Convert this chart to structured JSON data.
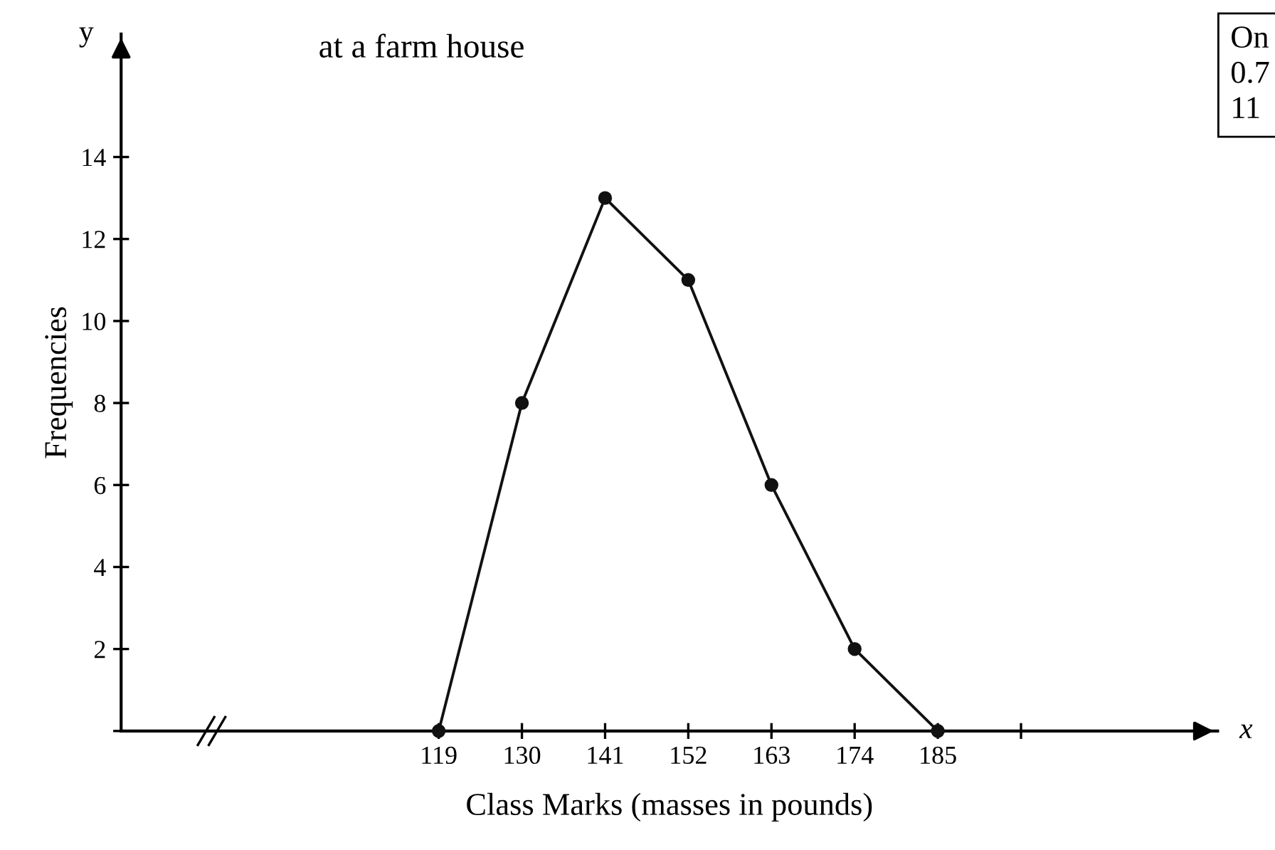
{
  "chart_data": {
    "type": "line",
    "title": "at a farm house",
    "xlabel": "Class Marks (masses in pounds)",
    "ylabel": "Frequencies",
    "x": [
      119,
      130,
      141,
      152,
      163,
      174,
      185
    ],
    "series": [
      {
        "color": "#111111",
        "values": [
          0,
          8,
          13,
          11,
          6,
          2,
          0
        ]
      }
    ],
    "xlim": [
      77,
      222
    ],
    "ylim": [
      0,
      17
    ],
    "xticks": [
      119,
      130,
      141,
      152,
      163,
      174,
      185,
      {
        "value": 196,
        "label": null
      }
    ],
    "yticks": [
      {
        "value": 0,
        "label": null
      },
      2,
      4,
      6,
      8,
      10,
      12,
      14
    ],
    "grid": false,
    "legend": false,
    "marker": "circle",
    "line_style": "solid",
    "annotations": [
      "y",
      "x",
      "On",
      "0.7",
      "11"
    ]
  }
}
